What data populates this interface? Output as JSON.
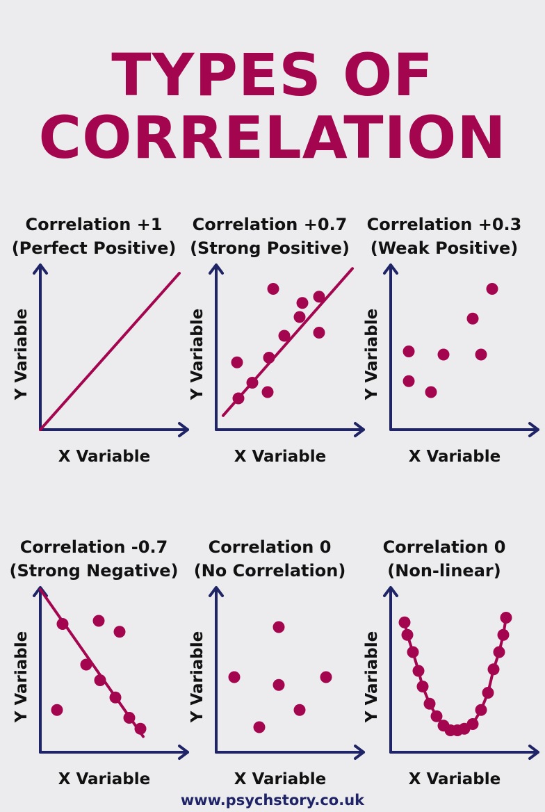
{
  "title": {
    "line1": "TYPES OF",
    "line2": "CORRELATION"
  },
  "footer": "www.psychstory.co.uk",
  "colors": {
    "title": "#a3064f",
    "data": "#a3064f",
    "axis": "#1f2466",
    "text": "#111111",
    "background": "#ececee"
  },
  "chart_data": [
    {
      "type": "line",
      "title": "Correlation +1",
      "subtitle": "(Perfect Positive)",
      "xlabel": "X Variable",
      "ylabel": "Y Variable",
      "xlim": [
        0,
        10
      ],
      "ylim": [
        0,
        10
      ],
      "line": [
        [
          0,
          0
        ],
        [
          10,
          10
        ]
      ],
      "points": []
    },
    {
      "type": "scatter",
      "title": "Correlation +0.7",
      "subtitle": "(Strong Positive)",
      "xlabel": "X Variable",
      "ylabel": "Y Variable",
      "xlim": [
        0,
        10
      ],
      "ylim": [
        0,
        10
      ],
      "line": [
        [
          0.5,
          0.9
        ],
        [
          9.8,
          10.3
        ]
      ],
      "points": [
        [
          1.6,
          2.0
        ],
        [
          1.5,
          4.3
        ],
        [
          2.6,
          3.0
        ],
        [
          3.7,
          2.4
        ],
        [
          3.8,
          4.6
        ],
        [
          4.9,
          6.0
        ],
        [
          6.0,
          7.2
        ],
        [
          6.2,
          8.1
        ],
        [
          4.1,
          9.0
        ],
        [
          7.4,
          8.5
        ],
        [
          7.4,
          6.2
        ]
      ]
    },
    {
      "type": "scatter",
      "title": "Correlation +0.3",
      "subtitle": "(Weak Positive)",
      "xlabel": "X Variable",
      "ylabel": "Y Variable",
      "xlim": [
        0,
        10
      ],
      "ylim": [
        0,
        10
      ],
      "line": [],
      "points": [
        [
          1.3,
          5.0
        ],
        [
          1.3,
          3.1
        ],
        [
          2.9,
          2.4
        ],
        [
          3.8,
          4.8
        ],
        [
          5.9,
          7.1
        ],
        [
          6.5,
          4.8
        ],
        [
          7.3,
          9.0
        ]
      ]
    },
    {
      "type": "scatter",
      "title": "Correlation -0.7",
      "subtitle": "(Strong Negative)",
      "xlabel": "X Variable",
      "ylabel": "Y Variable",
      "xlim": [
        0,
        10
      ],
      "ylim": [
        0,
        10
      ],
      "line": [
        [
          0.0,
          10.4
        ],
        [
          7.4,
          1.0
        ]
      ],
      "points": [
        [
          1.6,
          8.2
        ],
        [
          4.2,
          8.4
        ],
        [
          5.7,
          7.7
        ],
        [
          3.3,
          5.6
        ],
        [
          4.3,
          4.6
        ],
        [
          5.4,
          3.5
        ],
        [
          6.4,
          2.2
        ],
        [
          7.2,
          1.5
        ],
        [
          1.2,
          2.7
        ]
      ]
    },
    {
      "type": "scatter",
      "title": "Correlation 0",
      "subtitle": "(No Correlation)",
      "xlabel": "X Variable",
      "ylabel": "Y Variable",
      "xlim": [
        0,
        10
      ],
      "ylim": [
        0,
        10
      ],
      "line": [],
      "points": [
        [
          4.5,
          8.0
        ],
        [
          1.3,
          4.8
        ],
        [
          4.5,
          4.3
        ],
        [
          7.9,
          4.8
        ],
        [
          3.1,
          1.6
        ],
        [
          6.0,
          2.7
        ]
      ]
    },
    {
      "type": "line",
      "title": "Correlation 0",
      "subtitle": "(Non-linear)",
      "xlabel": "X Variable",
      "ylabel": "Y Variable",
      "xlim": [
        0,
        10
      ],
      "ylim": [
        0,
        10
      ],
      "line": [],
      "curve": "u-shape",
      "points": [
        [
          1.0,
          8.3
        ],
        [
          1.2,
          7.5
        ],
        [
          1.6,
          6.4
        ],
        [
          2.0,
          5.2
        ],
        [
          2.3,
          4.2
        ],
        [
          2.8,
          3.1
        ],
        [
          3.3,
          2.3
        ],
        [
          3.8,
          1.7
        ],
        [
          4.3,
          1.4
        ],
        [
          4.8,
          1.4
        ],
        [
          5.3,
          1.5
        ],
        [
          5.9,
          1.8
        ],
        [
          6.5,
          2.7
        ],
        [
          7.0,
          3.8
        ],
        [
          7.4,
          5.3
        ],
        [
          7.8,
          6.4
        ],
        [
          8.1,
          7.5
        ],
        [
          8.3,
          8.6
        ]
      ]
    }
  ]
}
